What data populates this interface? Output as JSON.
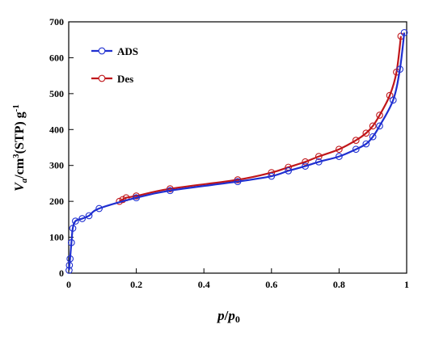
{
  "chart_data": {
    "type": "scatter",
    "title": "",
    "xlabel_parts": [
      "p",
      "/",
      "p",
      "0"
    ],
    "ylabel_parts": [
      "V",
      "a",
      "/cm",
      "3",
      "(STP) g",
      "-1"
    ],
    "xlim": [
      0,
      1
    ],
    "ylim": [
      0,
      700
    ],
    "x_ticks": [
      "0",
      "0.2",
      "0.4",
      "0.6",
      "0.8",
      "1"
    ],
    "y_ticks": [
      "0",
      "100",
      "200",
      "300",
      "400",
      "500",
      "600",
      "700"
    ],
    "grid": false,
    "legend_placement": "top-left",
    "series": [
      {
        "name": "ADS",
        "color": "#1f2fd0",
        "marker": "open-circle",
        "x": [
          0.001,
          0.002,
          0.004,
          0.008,
          0.012,
          0.02,
          0.04,
          0.06,
          0.09,
          0.2,
          0.3,
          0.5,
          0.6,
          0.65,
          0.7,
          0.74,
          0.8,
          0.85,
          0.88,
          0.9,
          0.92,
          0.96,
          0.98,
          0.993
        ],
        "y": [
          8,
          22,
          40,
          85,
          125,
          145,
          152,
          160,
          180,
          210,
          230,
          255,
          270,
          285,
          298,
          310,
          325,
          345,
          360,
          380,
          410,
          482,
          568,
          670
        ]
      },
      {
        "name": "Des",
        "color": "#c0161a",
        "marker": "open-circle",
        "x": [
          0.15,
          0.16,
          0.17,
          0.2,
          0.3,
          0.5,
          0.6,
          0.65,
          0.7,
          0.74,
          0.8,
          0.85,
          0.88,
          0.9,
          0.92,
          0.95,
          0.97,
          0.983
        ],
        "y": [
          200,
          205,
          210,
          215,
          235,
          260,
          280,
          295,
          310,
          325,
          345,
          370,
          390,
          410,
          440,
          495,
          560,
          660
        ]
      }
    ]
  }
}
